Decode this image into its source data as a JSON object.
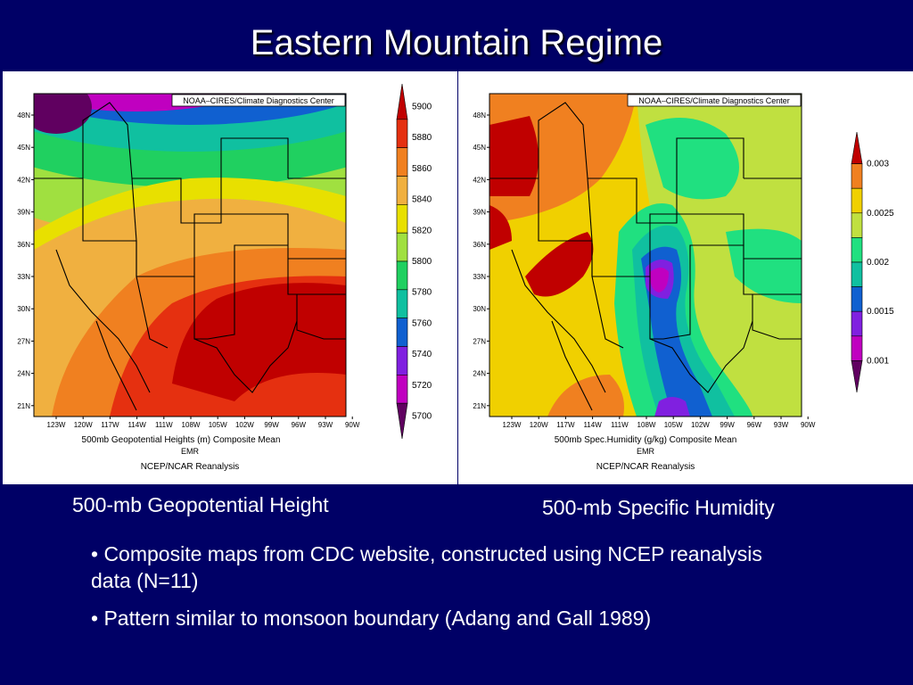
{
  "slide": {
    "title": "Eastern Mountain Regime",
    "caption_left": "500-mb Geopotential Height",
    "caption_right": "500-mb Specific Humidity",
    "bullets": [
      "• Composite maps from CDC website, constructed using NCEP reanalysis data (N=11)",
      "• Pattern similar to monsoon boundary (Adang and Gall 1989)"
    ]
  },
  "maps": [
    {
      "credit": "NOAA–CIRES/Climate Diagnostics Center",
      "lat_labels": [
        "48N",
        "45N",
        "42N",
        "39N",
        "36N",
        "33N",
        "30N",
        "27N",
        "24N",
        "21N"
      ],
      "lon_labels": [
        "123W",
        "120W",
        "117W",
        "114W",
        "111W",
        "108W",
        "105W",
        "102W",
        "99W",
        "96W",
        "93W",
        "90W"
      ],
      "footer_line1": "500mb Geopotential Heights (m)     Composite Mean",
      "footer_line2": "EMR",
      "footer_line3": "NCEP/NCAR Reanalysis",
      "colorbar_labels": [
        "5900",
        "5880",
        "5860",
        "5840",
        "5820",
        "5800",
        "5780",
        "5760",
        "5740",
        "5720",
        "5700"
      ],
      "colorbar_colors": [
        "#c00000",
        "#e53010",
        "#f08020",
        "#f0b040",
        "#e8e000",
        "#a0e040",
        "#20d060",
        "#10c0a0",
        "#1060d0",
        "#8020e0",
        "#c000c0",
        "#600060"
      ]
    },
    {
      "credit": "NOAA–CIRES/Climate Diagnostics Center",
      "lat_labels": [
        "48N",
        "45N",
        "42N",
        "39N",
        "36N",
        "33N",
        "30N",
        "27N",
        "24N",
        "21N"
      ],
      "lon_labels": [
        "123W",
        "120W",
        "117W",
        "114W",
        "111W",
        "108W",
        "105W",
        "102W",
        "99W",
        "96W",
        "93W",
        "90W"
      ],
      "footer_line1": "500mb Spec.Humidity (g/kg)     Composite Mean",
      "footer_line2": "EMR",
      "footer_line3": "NCEP/NCAR Reanalysis",
      "colorbar_labels": [
        "0.003",
        "0.0025",
        "0.002",
        "0.0015",
        "0.001"
      ],
      "colorbar_colors": [
        "#c00000",
        "#f08020",
        "#f0d000",
        "#c0e040",
        "#20e080",
        "#10c0a0",
        "#1060d0",
        "#8020e0",
        "#c000c0",
        "#600060"
      ]
    }
  ]
}
